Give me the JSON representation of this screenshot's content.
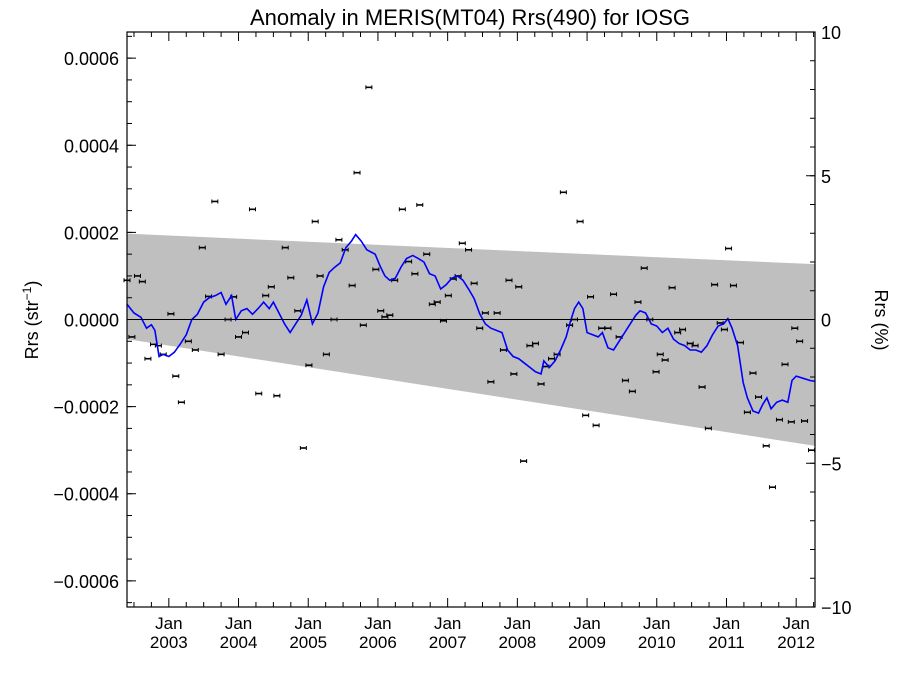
{
  "chart_data": {
    "type": "scatter",
    "title": "Anomaly in MERIS(MT04) Rrs(490) for IOSG",
    "ylabel_left": "Rrs (str",
    "ylabel_left_sup": "−1",
    "ylabel_left_close": ")",
    "ylabel_right": "Rrs (%)",
    "xlim": [
      2002.4,
      2012.27
    ],
    "ylim": [
      -0.00066,
      0.00066
    ],
    "ylim_right": [
      -10,
      10
    ],
    "x_tick_top": "Jan",
    "x_ticks": [
      {
        "x": 2003.0,
        "label": "2003"
      },
      {
        "x": 2004.0,
        "label": "2004"
      },
      {
        "x": 2005.0,
        "label": "2005"
      },
      {
        "x": 2006.0,
        "label": "2006"
      },
      {
        "x": 2007.0,
        "label": "2007"
      },
      {
        "x": 2008.0,
        "label": "2008"
      },
      {
        "x": 2009.0,
        "label": "2009"
      },
      {
        "x": 2010.0,
        "label": "2010"
      },
      {
        "x": 2011.0,
        "label": "2011"
      },
      {
        "x": 2012.0,
        "label": "2012"
      }
    ],
    "y_ticks_left": [
      {
        "v": 0.0006,
        "label": "0.0006"
      },
      {
        "v": 0.0004,
        "label": "0.0004"
      },
      {
        "v": 0.0002,
        "label": "0.0002"
      },
      {
        "v": 0.0,
        "label": "0.0000"
      },
      {
        "v": -0.0002,
        "label": "−0.0002"
      },
      {
        "v": -0.0004,
        "label": "−0.0004"
      },
      {
        "v": -0.0006,
        "label": "−0.0006"
      }
    ],
    "y_ticks_right": [
      {
        "v": 10,
        "label": "10"
      },
      {
        "v": 5,
        "label": "5"
      },
      {
        "v": 0,
        "label": "0"
      },
      {
        "v": -5,
        "label": "−5"
      },
      {
        "v": -10,
        "label": "−10"
      }
    ],
    "band": {
      "upper": [
        [
          2002.4,
          0.000197
        ],
        [
          2012.27,
          0.000127
        ]
      ],
      "lower": [
        [
          2002.4,
          -4.5e-05
        ],
        [
          2012.27,
          -0.00029
        ]
      ],
      "color": "#bfbfbf"
    },
    "points": [
      [
        2002.4,
        9e-05
      ],
      [
        2002.47,
        -4e-05
      ],
      [
        2002.55,
        0.0001
      ],
      [
        2002.62,
        8.7e-05
      ],
      [
        2002.7,
        -9e-05
      ],
      [
        2002.78,
        -5.7e-05
      ],
      [
        2002.85,
        -6e-05
      ],
      [
        2002.92,
        -8e-05
      ],
      [
        2003.03,
        1.3e-05
      ],
      [
        2003.1,
        -0.00013
      ],
      [
        2003.18,
        -0.00019
      ],
      [
        2003.28,
        -5e-05
      ],
      [
        2003.38,
        -7e-05
      ],
      [
        2003.48,
        0.000165
      ],
      [
        2003.57,
        5.3e-05
      ],
      [
        2003.66,
        0.000271
      ],
      [
        2003.75,
        -8e-05
      ],
      [
        2003.85,
        0.0
      ],
      [
        2003.93,
        5.2e-05
      ],
      [
        2004.0,
        -4e-05
      ],
      [
        2004.1,
        -3e-05
      ],
      [
        2004.2,
        0.000253
      ],
      [
        2004.29,
        -0.00017
      ],
      [
        2004.39,
        5.5e-05
      ],
      [
        2004.47,
        7.5e-05
      ],
      [
        2004.55,
        -0.000175
      ],
      [
        2004.67,
        0.000165
      ],
      [
        2004.75,
        9.6e-05
      ],
      [
        2004.85,
        2e-05
      ],
      [
        2004.93,
        -0.000295
      ],
      [
        2005.01,
        -0.000105
      ],
      [
        2005.1,
        0.000225
      ],
      [
        2005.17,
        0.0001
      ],
      [
        2005.26,
        -8e-05
      ],
      [
        2005.37,
        0.0
      ],
      [
        2005.44,
        0.000183
      ],
      [
        2005.53,
        0.00016
      ],
      [
        2005.63,
        7.8e-05
      ],
      [
        2005.7,
        0.000337
      ],
      [
        2005.79,
        -1.3e-05
      ],
      [
        2005.87,
        0.000533
      ],
      [
        2005.97,
        0.000115
      ],
      [
        2006.04,
        2e-05
      ],
      [
        2006.1,
        6e-06
      ],
      [
        2006.17,
        1e-05
      ],
      [
        2006.24,
        9e-05
      ],
      [
        2006.35,
        0.000253
      ],
      [
        2006.44,
        0.000133
      ],
      [
        2006.53,
        0.000105
      ],
      [
        2006.6,
        0.000263
      ],
      [
        2006.7,
        0.00015
      ],
      [
        2006.78,
        3.5e-05
      ],
      [
        2006.85,
        4e-05
      ],
      [
        2006.94,
        -3e-06
      ],
      [
        2007.01,
        5.5e-05
      ],
      [
        2007.08,
        9.3e-05
      ],
      [
        2007.15,
        0.0001
      ],
      [
        2007.21,
        0.000175
      ],
      [
        2007.3,
        0.00016
      ],
      [
        2007.38,
        8.3e-05
      ],
      [
        2007.46,
        -2e-05
      ],
      [
        2007.54,
        1.5e-05
      ],
      [
        2007.62,
        -0.000143
      ],
      [
        2007.71,
        1.5e-05
      ],
      [
        2007.8,
        -7e-05
      ],
      [
        2007.88,
        9e-05
      ],
      [
        2007.95,
        -0.000125
      ],
      [
        2008.02,
        7.5e-05
      ],
      [
        2008.09,
        -0.000325
      ],
      [
        2008.18,
        -6e-05
      ],
      [
        2008.26,
        -5.5e-05
      ],
      [
        2008.34,
        -0.000148
      ],
      [
        2008.41,
        -0.000108
      ],
      [
        2008.49,
        -9e-05
      ],
      [
        2008.57,
        -8e-05
      ],
      [
        2008.66,
        0.000292
      ],
      [
        2008.75,
        -1.3e-05
      ],
      [
        2008.82,
        0.0
      ],
      [
        2008.9,
        0.000225
      ],
      [
        2008.98,
        -0.00022
      ],
      [
        2009.05,
        5.2e-05
      ],
      [
        2009.13,
        -0.000243
      ],
      [
        2009.21,
        -2e-05
      ],
      [
        2009.3,
        -2e-05
      ],
      [
        2009.38,
        5.8e-05
      ],
      [
        2009.46,
        -4e-05
      ],
      [
        2009.55,
        -0.00014
      ],
      [
        2009.65,
        -0.000165
      ],
      [
        2009.73,
        4e-05
      ],
      [
        2009.82,
        0.000118
      ],
      [
        2009.9,
        0.0
      ],
      [
        2009.99,
        -0.00012
      ],
      [
        2010.05,
        -8e-05
      ],
      [
        2010.12,
        -9.3e-05
      ],
      [
        2010.22,
        7.3e-05
      ],
      [
        2010.3,
        -3e-05
      ],
      [
        2010.37,
        -2.3e-05
      ],
      [
        2010.48,
        -5.5e-05
      ],
      [
        2010.55,
        -6e-05
      ],
      [
        2010.65,
        -0.000155
      ],
      [
        2010.74,
        -0.00025
      ],
      [
        2010.83,
        8e-05
      ],
      [
        2010.91,
        -8e-06
      ],
      [
        2010.97,
        -2.3e-05
      ],
      [
        2011.03,
        0.000163
      ],
      [
        2011.1,
        7.8e-05
      ],
      [
        2011.2,
        -5.3e-05
      ],
      [
        2011.3,
        -0.000213
      ],
      [
        2011.38,
        -0.000123
      ],
      [
        2011.46,
        -0.000178
      ],
      [
        2011.57,
        -0.00029
      ],
      [
        2011.66,
        -0.000385
      ],
      [
        2011.76,
        -0.00023
      ],
      [
        2011.84,
        -0.000103
      ],
      [
        2011.93,
        -0.000235
      ],
      [
        2011.98,
        -2e-05
      ],
      [
        2012.05,
        -5e-05
      ],
      [
        2012.12,
        -0.000233
      ],
      [
        2012.22,
        -0.0003
      ]
    ],
    "smooth_line": {
      "color": "#0000ff",
      "points": [
        [
          2002.4,
          3.5e-05
        ],
        [
          2002.5,
          1.5e-05
        ],
        [
          2002.6,
          5e-06
        ],
        [
          2002.68,
          -2e-05
        ],
        [
          2002.75,
          -1.2e-05
        ],
        [
          2002.8,
          -2.5e-05
        ],
        [
          2002.86,
          -8.5e-05
        ],
        [
          2002.92,
          -8e-05
        ],
        [
          2003.0,
          -8.5e-05
        ],
        [
          2003.08,
          -7.5e-05
        ],
        [
          2003.17,
          -5.5e-05
        ],
        [
          2003.25,
          -3.5e-05
        ],
        [
          2003.33,
          0.0
        ],
        [
          2003.41,
          1.2e-05
        ],
        [
          2003.5,
          4e-05
        ],
        [
          2003.58,
          5e-05
        ],
        [
          2003.67,
          5.5e-05
        ],
        [
          2003.75,
          6.2e-05
        ],
        [
          2003.82,
          3.5e-05
        ],
        [
          2003.9,
          5.5e-05
        ],
        [
          2003.96,
          0.0
        ],
        [
          2004.04,
          2e-05
        ],
        [
          2004.12,
          2.5e-05
        ],
        [
          2004.2,
          1.2e-05
        ],
        [
          2004.28,
          2.5e-05
        ],
        [
          2004.36,
          4e-05
        ],
        [
          2004.44,
          2.5e-05
        ],
        [
          2004.5,
          4e-05
        ],
        [
          2004.58,
          1.5e-05
        ],
        [
          2004.66,
          -1e-05
        ],
        [
          2004.74,
          -3e-05
        ],
        [
          2004.82,
          -1e-05
        ],
        [
          2004.9,
          1e-05
        ],
        [
          2004.98,
          4.5e-05
        ],
        [
          2005.06,
          -1e-05
        ],
        [
          2005.14,
          1.5e-05
        ],
        [
          2005.22,
          7.5e-05
        ],
        [
          2005.3,
          0.000108
        ],
        [
          2005.38,
          0.00012
        ],
        [
          2005.46,
          0.00013
        ],
        [
          2005.54,
          0.000165
        ],
        [
          2005.62,
          0.00018
        ],
        [
          2005.68,
          0.000195
        ],
        [
          2005.76,
          0.00018
        ],
        [
          2005.84,
          0.00016
        ],
        [
          2005.9,
          0.000155
        ],
        [
          2005.96,
          0.00015
        ],
        [
          2006.03,
          0.000123
        ],
        [
          2006.1,
          0.0001
        ],
        [
          2006.17,
          9e-05
        ],
        [
          2006.25,
          9.5e-05
        ],
        [
          2006.33,
          0.00012
        ],
        [
          2006.41,
          0.00014
        ],
        [
          2006.5,
          0.000147
        ],
        [
          2006.58,
          0.00014
        ],
        [
          2006.66,
          0.000132
        ],
        [
          2006.74,
          0.000105
        ],
        [
          2006.82,
          0.0001
        ],
        [
          2006.9,
          7e-05
        ],
        [
          2006.98,
          8e-05
        ],
        [
          2007.06,
          9.5e-05
        ],
        [
          2007.14,
          0.0001
        ],
        [
          2007.22,
          9e-05
        ],
        [
          2007.3,
          7e-05
        ],
        [
          2007.38,
          4.8e-05
        ],
        [
          2007.46,
          1.3e-05
        ],
        [
          2007.54,
          -1e-05
        ],
        [
          2007.62,
          -2e-05
        ],
        [
          2007.7,
          -2.5e-05
        ],
        [
          2007.78,
          -3e-05
        ],
        [
          2007.86,
          -7e-05
        ],
        [
          2007.94,
          -8.5e-05
        ],
        [
          2008.02,
          -9e-05
        ],
        [
          2008.1,
          -0.0001
        ],
        [
          2008.18,
          -0.00011
        ],
        [
          2008.26,
          -0.00012
        ],
        [
          2008.34,
          -0.000125
        ],
        [
          2008.38,
          -9.5e-05
        ],
        [
          2008.46,
          -0.00011
        ],
        [
          2008.54,
          -9.5e-05
        ],
        [
          2008.62,
          -7e-05
        ],
        [
          2008.7,
          -4e-05
        ],
        [
          2008.76,
          -5e-06
        ],
        [
          2008.82,
          2.5e-05
        ],
        [
          2008.88,
          4e-05
        ],
        [
          2008.94,
          2.5e-05
        ],
        [
          2009.0,
          -3e-05
        ],
        [
          2009.08,
          -3.5e-05
        ],
        [
          2009.16,
          -4e-05
        ],
        [
          2009.22,
          -3e-05
        ],
        [
          2009.3,
          -6.5e-05
        ],
        [
          2009.38,
          -7e-05
        ],
        [
          2009.46,
          -5e-05
        ],
        [
          2009.54,
          -3e-05
        ],
        [
          2009.62,
          -1e-05
        ],
        [
          2009.7,
          1e-05
        ],
        [
          2009.76,
          2e-05
        ],
        [
          2009.84,
          1.5e-05
        ],
        [
          2009.92,
          -1e-05
        ],
        [
          2010.0,
          -1.5e-05
        ],
        [
          2010.08,
          -3e-05
        ],
        [
          2010.16,
          -2e-05
        ],
        [
          2010.24,
          -4.5e-05
        ],
        [
          2010.32,
          -5.5e-05
        ],
        [
          2010.4,
          -6e-05
        ],
        [
          2010.48,
          -7e-05
        ],
        [
          2010.56,
          -7e-05
        ],
        [
          2010.64,
          -7.5e-05
        ],
        [
          2010.72,
          -6e-05
        ],
        [
          2010.8,
          -3.5e-05
        ],
        [
          2010.88,
          -1.5e-05
        ],
        [
          2010.96,
          -1e-05
        ],
        [
          2011.02,
          2e-06
        ],
        [
          2011.08,
          -2e-05
        ],
        [
          2011.16,
          -6e-05
        ],
        [
          2011.24,
          -0.000145
        ],
        [
          2011.3,
          -0.00018
        ],
        [
          2011.38,
          -0.00021
        ],
        [
          2011.46,
          -0.000215
        ],
        [
          2011.52,
          -0.000195
        ],
        [
          2011.58,
          -0.00018
        ],
        [
          2011.64,
          -0.000205
        ],
        [
          2011.72,
          -0.00019
        ],
        [
          2011.8,
          -0.000185
        ],
        [
          2011.88,
          -0.00019
        ],
        [
          2011.94,
          -0.00014
        ],
        [
          2012.0,
          -0.00013
        ],
        [
          2012.1,
          -0.000135
        ],
        [
          2012.2,
          -0.00014
        ],
        [
          2012.27,
          -0.000142
        ]
      ]
    }
  }
}
